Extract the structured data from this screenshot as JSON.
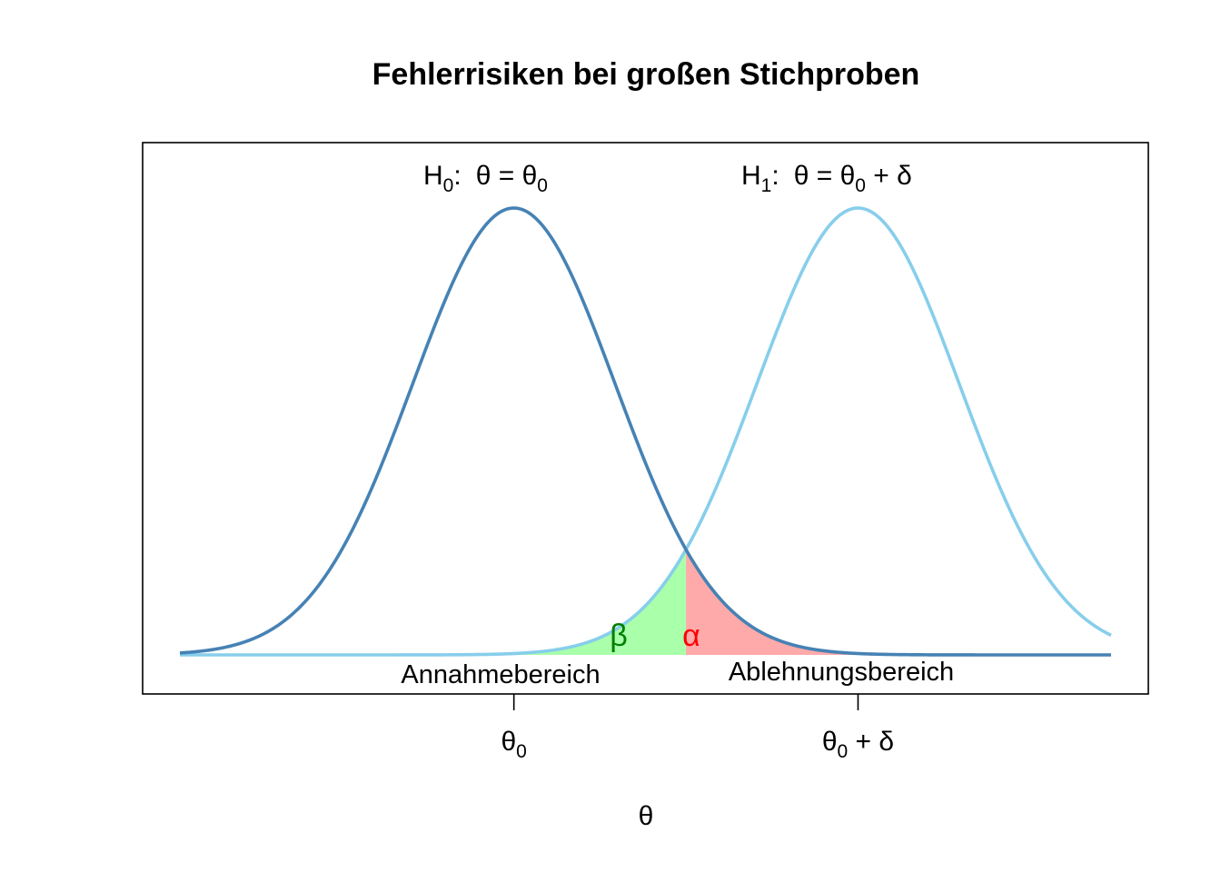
{
  "chart_data": {
    "type": "line",
    "title": "Fehlerrisiken bei großen Stichproben",
    "xlabel": "θ",
    "ylabel": "",
    "xlim": [
      -3.3,
      5.9
    ],
    "ylim": [
      0,
      0.4
    ],
    "x_ticks": [
      {
        "value": 0,
        "main": "θ",
        "sub": "0",
        "tail": ""
      },
      {
        "value": 3.4,
        "main": "θ",
        "sub": "0",
        "tail": " + δ"
      }
    ],
    "series": [
      {
        "mean": 0,
        "sd": 1,
        "color": "#4682b4"
      },
      {
        "mean": 3.4,
        "sd": 1,
        "color": "#87ceeb"
      }
    ],
    "critical_value": 1.7,
    "shaded_areas": [
      {
        "symbol": "β",
        "side": "left of critical value, under H1",
        "fill": "#aaffaa",
        "text_color": "#008000"
      },
      {
        "symbol": "α",
        "side": "right of critical value, under H0",
        "fill": "#ffaaaa",
        "text_color": "#ff0000"
      }
    ],
    "annotations": {
      "h0": {
        "name": "H",
        "name_sub": "0",
        "colon": ":",
        "text": "θ = θ",
        "text_sub": "0",
        "tail": ""
      },
      "h1": {
        "name": "H",
        "name_sub": "1",
        "colon": ":",
        "text": "θ = θ",
        "text_sub": "0",
        "tail": " + δ"
      },
      "accept_region": "Annahmebereich",
      "reject_region": "Ablehnungsbereich"
    },
    "grid": false,
    "legend": "none",
    "box": true
  }
}
